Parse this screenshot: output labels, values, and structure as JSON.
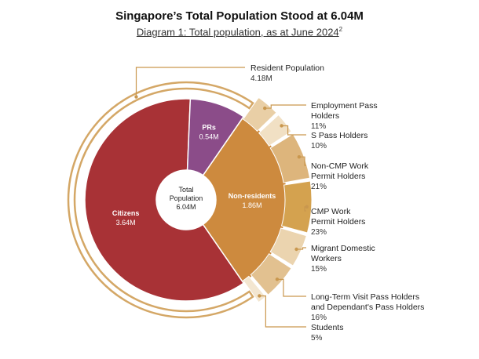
{
  "header": {
    "title": "Singapore’s Total Population Stood at 6.04M",
    "subtitle": "Diagram 1: Total population, as at June 2024",
    "subtitle_sup": "2"
  },
  "colors": {
    "citizens": "#A83236",
    "prs": "#8B4C89",
    "non_residents": "#CD8A3E",
    "outer_ring": "#D4A766",
    "leader": "#C9974E"
  },
  "chart_data": {
    "type": "pie",
    "center": {
      "label_line1": "Total",
      "label_line2": "Population",
      "value": "6.04M"
    },
    "resident": {
      "label": "Resident Population",
      "value": "4.18M"
    },
    "inner": [
      {
        "name": "Citizens",
        "value": 3.64,
        "display": "3.64M",
        "color": "#A83236"
      },
      {
        "name": "PRs",
        "value": 0.54,
        "display": "0.54M",
        "color": "#8B4C89"
      },
      {
        "name": "Non-residents",
        "value": 1.86,
        "display": "1.86M",
        "color": "#CD8A3E"
      }
    ],
    "breakdown": [
      {
        "lines": [
          "Employment Pass",
          "Holders"
        ],
        "pct": 11,
        "pct_label": "11%",
        "color": "#E9CFA6"
      },
      {
        "lines": [
          "S Pass Holders"
        ],
        "pct": 10,
        "pct_label": "10%",
        "color": "#F1E0C4"
      },
      {
        "lines": [
          "Non-CMP Work",
          "Permit Holders"
        ],
        "pct": 21,
        "pct_label": "21%",
        "color": "#DDB57C"
      },
      {
        "lines": [
          "CMP Work",
          "Permit Holders"
        ],
        "pct": 23,
        "pct_label": "23%",
        "color": "#D4A24F"
      },
      {
        "lines": [
          "Migrant Domestic",
          "Workers"
        ],
        "pct": 15,
        "pct_label": "15%",
        "color": "#EBD4AF"
      },
      {
        "lines": [
          "Long-Term Visit Pass Holders",
          "and Dependant's Pass Holders"
        ],
        "pct": 16,
        "pct_label": "16%",
        "color": "#E2C190"
      },
      {
        "lines": [
          "Students"
        ],
        "pct": 5,
        "pct_label": "5%",
        "color": "#F3E6D0"
      }
    ]
  }
}
